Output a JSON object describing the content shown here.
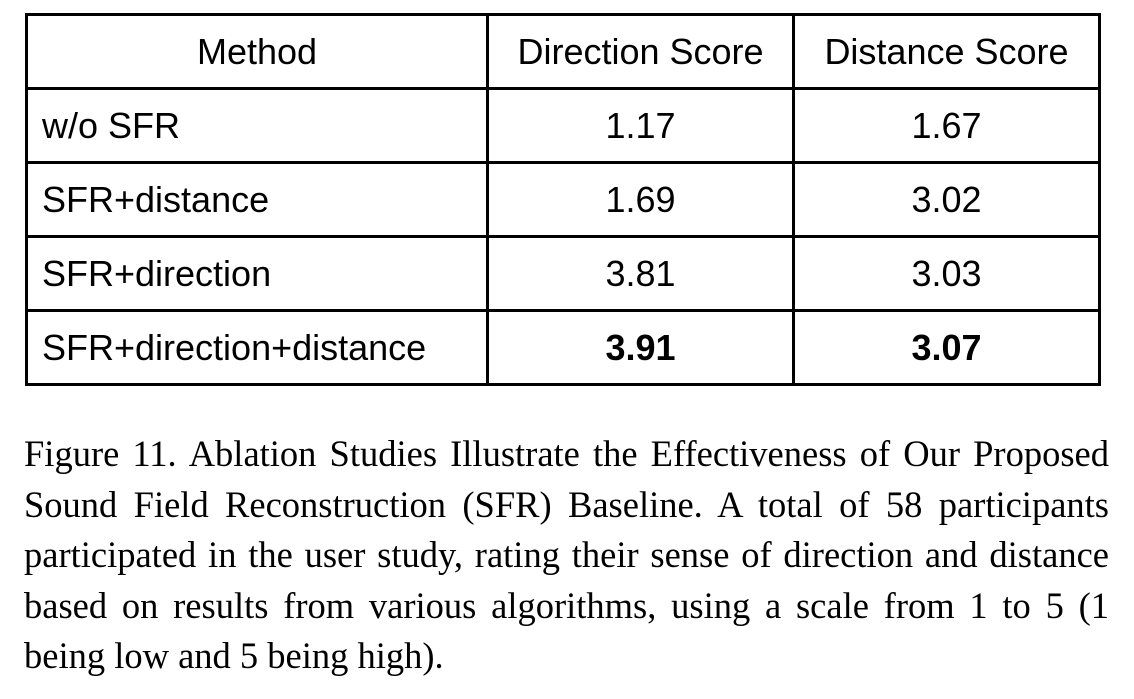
{
  "table": {
    "headers": [
      "Method",
      "Direction Score",
      "Distance Score"
    ],
    "rows": [
      {
        "method": "w/o SFR",
        "direction": "1.17",
        "distance": "1.67",
        "best": false
      },
      {
        "method": "SFR+distance",
        "direction": "1.69",
        "distance": "3.02",
        "best": false
      },
      {
        "method": "SFR+direction",
        "direction": "3.81",
        "distance": "3.03",
        "best": false
      },
      {
        "method": "SFR+direction+distance",
        "direction": "3.91",
        "distance": "3.07",
        "best": true
      }
    ]
  },
  "caption": {
    "label": "Figure 11.",
    "text": "Ablation Studies Illustrate the Effectiveness of Our Proposed Sound Field Reconstruction (SFR) Baseline. A total of 58 participants participated in the user study, rating their sense of direction and distance based on results from various algorithms, using a scale from 1 to 5 (1 being low and 5 being high)."
  }
}
